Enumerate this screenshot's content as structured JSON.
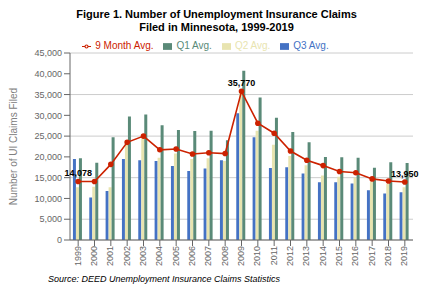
{
  "chart_data": {
    "type": "bar",
    "title": "Figure 1. Number of Unemployment Insurance Claims\nFiled in Minnesota, 1999-2019",
    "y_label": "Number of UI Claims Filed",
    "source": "Source: DEED Unemployment Insurance Claims Statistics",
    "categories": [
      "1999",
      "2000",
      "2001",
      "2002",
      "2003",
      "2004",
      "2005",
      "2006",
      "2007",
      "2008",
      "2009",
      "2010",
      "2011",
      "2012",
      "2013",
      "2014",
      "2015",
      "2016",
      "2017",
      "2018",
      "2019"
    ],
    "series": [
      {
        "name": "Q3 Avg.",
        "type": "bar",
        "color": "#4472c4",
        "values": [
          19500,
          10200,
          11800,
          19500,
          19200,
          19000,
          17800,
          16600,
          17200,
          19200,
          30500,
          24700,
          17300,
          17500,
          16000,
          13900,
          13900,
          13600,
          12000,
          11200,
          11500
        ]
      },
      {
        "name": "Q2 Avg.",
        "type": "bar",
        "color": "#e8e4b0",
        "values": [
          12700,
          12800,
          12700,
          24000,
          24700,
          19800,
          20800,
          19500,
          19700,
          19000,
          35800,
          26300,
          22900,
          20200,
          18000,
          15500,
          15200,
          15000,
          14000,
          13500,
          12700
        ]
      },
      {
        "name": "Q1 Avg.",
        "type": "bar",
        "color": "#5a8a78",
        "values": [
          19700,
          18600,
          24700,
          29700,
          30200,
          27600,
          26500,
          26200,
          26300,
          24000,
          40700,
          34300,
          29400,
          26000,
          23500,
          20000,
          19900,
          19800,
          17400,
          18700,
          18500
        ]
      },
      {
        "name": "9 Month Avg.",
        "type": "line",
        "color": "#cc2200",
        "marker": "circle",
        "values": [
          14078,
          14078,
          18200,
          23500,
          25000,
          21700,
          21900,
          20700,
          21000,
          20800,
          35770,
          28100,
          25700,
          21400,
          19200,
          17900,
          16500,
          16200,
          14700,
          14200,
          13950
        ]
      }
    ],
    "annotations": [
      {
        "x": "1999",
        "y": 14078,
        "text": "14,078"
      },
      {
        "x": "2019",
        "y": 13950,
        "text": "13,950"
      },
      {
        "x": "2009",
        "y": 35770,
        "text": "35,770"
      }
    ],
    "ylim": [
      0,
      45000
    ],
    "yticks": [
      0,
      {
        "value": 5000,
        "label": "5,000"
      },
      {
        "value": 10000,
        "label": "10,000"
      },
      {
        "value": 15000,
        "label": "15,000"
      },
      {
        "value": 20000,
        "label": "20,000"
      },
      {
        "value": 25000,
        "label": "25,000"
      },
      {
        "value": 30000,
        "label": "30,000"
      },
      {
        "value": 35000,
        "label": "35,000"
      },
      {
        "value": 40000,
        "label": "40,000"
      },
      {
        "value": 45000,
        "label": "45,000"
      }
    ],
    "grid": true,
    "legend": "top"
  }
}
